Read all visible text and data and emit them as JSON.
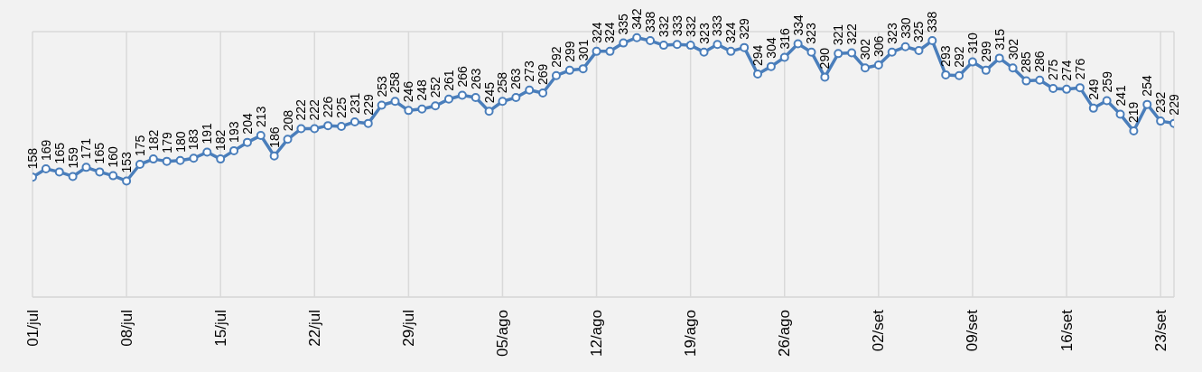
{
  "chart_data": {
    "type": "line",
    "categories": [
      "01/jul",
      null,
      null,
      null,
      null,
      null,
      null,
      "08/jul",
      null,
      null,
      null,
      null,
      null,
      null,
      "15/jul",
      null,
      null,
      null,
      null,
      null,
      null,
      "22/jul",
      null,
      null,
      null,
      null,
      null,
      null,
      "29/jul",
      null,
      null,
      null,
      null,
      null,
      null,
      "05/ago",
      null,
      null,
      null,
      null,
      null,
      null,
      "12/ago",
      null,
      null,
      null,
      null,
      null,
      null,
      "19/ago",
      null,
      null,
      null,
      null,
      null,
      null,
      "26/ago",
      null,
      null,
      null,
      null,
      null,
      null,
      "02/set",
      null,
      null,
      null,
      null,
      null,
      null,
      "09/set",
      null,
      null,
      null,
      null,
      null,
      null,
      "16/set",
      null,
      null,
      null,
      null,
      null,
      null,
      "23/set",
      null
    ],
    "series": [
      {
        "color": "#4a7ebb",
        "values": [
          158,
          169,
          165,
          159,
          171,
          165,
          160,
          153,
          175,
          182,
          179,
          180,
          183,
          191,
          182,
          193,
          204,
          213,
          186,
          208,
          222,
          222,
          226,
          225,
          231,
          229,
          253,
          258,
          246,
          248,
          252,
          261,
          266,
          263,
          245,
          258,
          263,
          273,
          269,
          292,
          299,
          301,
          324,
          324,
          335,
          342,
          338,
          332,
          333,
          332,
          323,
          333,
          324,
          329,
          294,
          304,
          316,
          334,
          323,
          290,
          321,
          322,
          302,
          306,
          323,
          330,
          325,
          338,
          293,
          292,
          310,
          299,
          315,
          302,
          285,
          286,
          275,
          274,
          276,
          249,
          259,
          241,
          219,
          254,
          232,
          229
        ]
      }
    ],
    "ylim": [
      0,
      350
    ],
    "tick_labels": "x",
    "grid": true,
    "marker": "circle",
    "line_style": "solid",
    "data_labels": true,
    "legend": false
  }
}
